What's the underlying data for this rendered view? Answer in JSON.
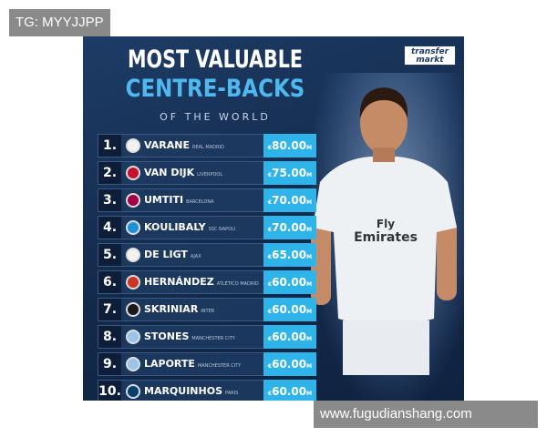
{
  "watermark_top": "TG: MYYJJPP",
  "watermark_bottom": "www.fugudianshang.com",
  "title": {
    "line1": "MOST VALUABLE",
    "line2": "CENTRE-BACKS",
    "line3": "OF THE WORLD"
  },
  "logo": {
    "line1": "transfer",
    "line2": "markt"
  },
  "currency_prefix": "€",
  "currency_suffix": "M",
  "colors": {
    "accent": "#2fb4ea",
    "background": "#14294a"
  },
  "jersey": {
    "sponsor1": "Fly",
    "sponsor2": "Emirates"
  },
  "players": [
    {
      "rank": "1.",
      "name": "VARANE",
      "club": "REAL MADRID",
      "value": "80.00",
      "badge": "#f2f2f2"
    },
    {
      "rank": "2.",
      "name": "VAN DIJK",
      "club": "LIVERPOOL",
      "value": "75.00",
      "badge": "#c8102e"
    },
    {
      "rank": "3.",
      "name": "UMTITI",
      "club": "BARCELONA",
      "value": "70.00",
      "badge": "#a50044"
    },
    {
      "rank": "4.",
      "name": "KOULIBALY",
      "club": "SSC NAPOLI",
      "value": "70.00",
      "badge": "#1e90d6"
    },
    {
      "rank": "5.",
      "name": "DE LIGT",
      "club": "AJAX",
      "value": "65.00",
      "badge": "#f2f2f2"
    },
    {
      "rank": "6.",
      "name": "HERNÁNDEZ",
      "club": "ATLÉTICO MADRID",
      "value": "60.00",
      "badge": "#cb3524"
    },
    {
      "rank": "7.",
      "name": "SKRINIAR",
      "club": "INTER",
      "value": "60.00",
      "badge": "#1a1a1a"
    },
    {
      "rank": "8.",
      "name": "STONES",
      "club": "MANCHESTER CITY",
      "value": "60.00",
      "badge": "#98c5e9"
    },
    {
      "rank": "9.",
      "name": "LAPORTE",
      "club": "MANCHESTER CITY",
      "value": "60.00",
      "badge": "#98c5e9"
    },
    {
      "rank": "10.",
      "name": "MARQUINHOS",
      "club": "PARIS",
      "value": "60.00",
      "badge": "#004170"
    }
  ]
}
